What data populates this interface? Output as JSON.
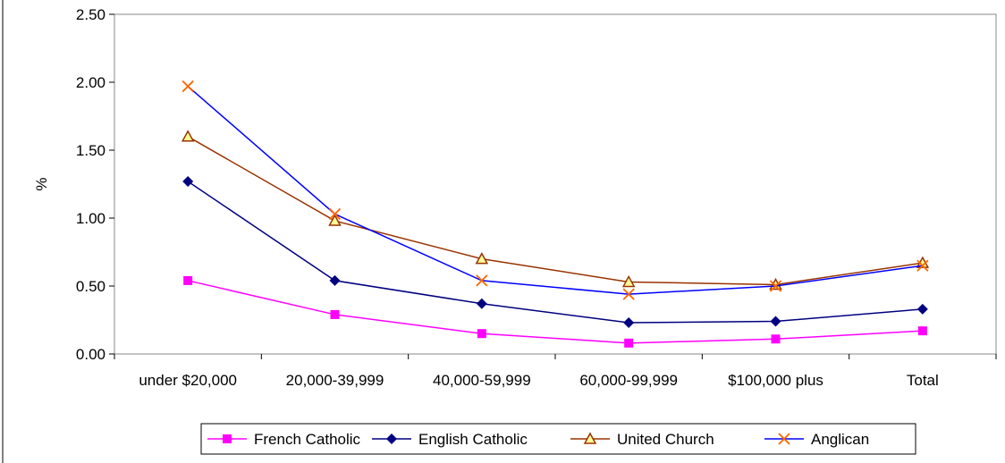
{
  "chart_data": {
    "type": "line",
    "title": "",
    "xlabel": "",
    "ylabel": "%",
    "ylim": [
      0,
      2.5
    ],
    "yticks": [
      "0.00",
      "0.50",
      "1.00",
      "1.50",
      "2.00",
      "2.50"
    ],
    "categories": [
      "under $20,000",
      "20,000-39,999",
      "40,000-59,999",
      "60,000-99,999",
      "$100,000 plus",
      "Total"
    ],
    "grid": false,
    "legend_position": "bottom",
    "series": [
      {
        "name": "French Catholic",
        "color": "#ff00ff",
        "marker": "square",
        "values": [
          0.54,
          0.29,
          0.15,
          0.08,
          0.11,
          0.17
        ]
      },
      {
        "name": "English Catholic",
        "color": "#000080",
        "marker": "diamond",
        "values": [
          1.27,
          0.54,
          0.37,
          0.23,
          0.24,
          0.33
        ]
      },
      {
        "name": "United Church",
        "color": "#993300",
        "marker": "triangle",
        "values": [
          1.6,
          0.98,
          0.7,
          0.53,
          0.51,
          0.67
        ]
      },
      {
        "name": "Anglican",
        "color": "#0000ff",
        "marker": "x",
        "values": [
          1.97,
          1.03,
          0.54,
          0.44,
          0.5,
          0.65
        ]
      }
    ]
  }
}
